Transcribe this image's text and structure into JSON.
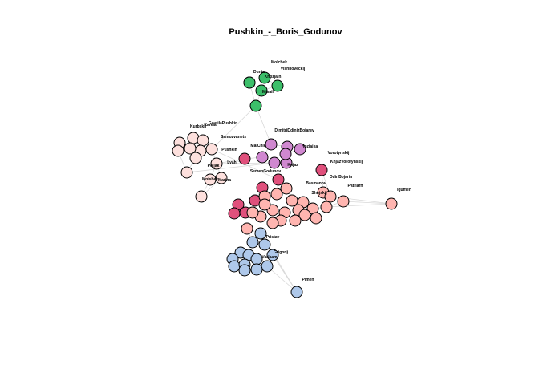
{
  "title": "Pushkin_-_Boris_Godunov",
  "nodes": [
    "Dunja",
    "Molchek",
    "Vishnoveckij",
    "Khozjain",
    "Misail",
    "Kurbskij",
    "Karela",
    "GavrilaPushkin",
    "Samozvanets",
    "Pushkin",
    "Lyah",
    "Poljak",
    "Mnishek",
    "Marina",
    "Dimitrij",
    "OdinizBojarev",
    "MalChik",
    "Hozjajka",
    "Knjaz",
    "SemenGodunov",
    "Vorotynskij",
    "KnjazVorotynskij",
    "OdinBojarin",
    "Patriarh",
    "Igumen",
    "Basmanov",
    "Shujskij",
    "Pimen",
    "Grigorij",
    "Varlaam",
    "Pristav"
  ]
}
